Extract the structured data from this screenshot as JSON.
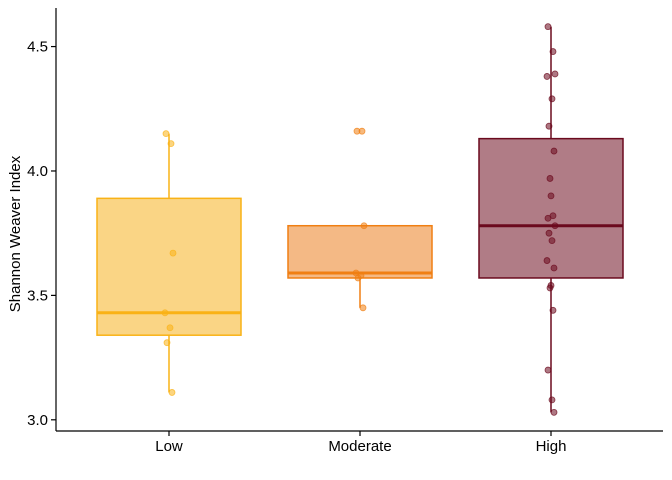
{
  "chart_data": {
    "type": "box",
    "title": "",
    "xlabel": "",
    "ylabel": "Shannon Weaver Index",
    "ylim": [
      2.955,
      4.655
    ],
    "yticks": [
      3.0,
      3.5,
      4.0,
      4.5
    ],
    "ytick_labels": [
      "3.0",
      "3.5",
      "4.0",
      "4.5"
    ],
    "grid": false,
    "legend": "none",
    "categories": [
      "Low",
      "Moderate",
      "High"
    ],
    "boxes": [
      {
        "category": "Low",
        "color": "#F9B216",
        "fill": "#FAD585",
        "whisker_low": 3.11,
        "q1": 3.34,
        "median": 3.43,
        "q3": 3.89,
        "whisker_high": 4.15,
        "points": [
          4.15,
          4.11,
          3.67,
          3.43,
          3.37,
          3.31,
          3.11
        ]
      },
      {
        "category": "Moderate",
        "color": "#F07F13",
        "fill": "#F4B985",
        "whisker_low": 3.45,
        "q1": 3.57,
        "median": 3.59,
        "q3": 3.78,
        "whisker_high": 3.78,
        "points": [
          4.16,
          4.16,
          3.78,
          3.59,
          3.58,
          3.57,
          3.45
        ]
      },
      {
        "category": "High",
        "color": "#6B0A1E",
        "fill": "#B07C86",
        "whisker_low": 3.03,
        "q1": 3.57,
        "median": 3.78,
        "q3": 4.13,
        "whisker_high": 4.58,
        "points": [
          4.58,
          4.48,
          4.39,
          4.38,
          4.29,
          4.18,
          4.08,
          3.97,
          3.9,
          3.82,
          3.81,
          3.78,
          3.75,
          3.72,
          3.64,
          3.61,
          3.54,
          3.53,
          3.44,
          3.2,
          3.08,
          3.03
        ]
      }
    ]
  }
}
